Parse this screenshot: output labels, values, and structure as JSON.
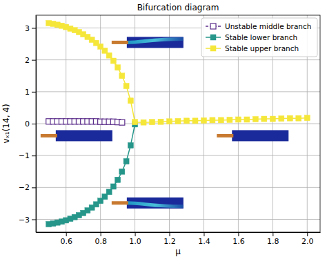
{
  "chart_data": {
    "type": "scatter",
    "title": "Bifurcation diagram",
    "x_label": "μ",
    "y_label": "vₓ₁(14, 4)",
    "xlim": [
      0.425,
      2.075
    ],
    "ylim": [
      -3.4,
      3.4
    ],
    "xticks": [
      0.6,
      0.8,
      {
        "value": 1.0,
        "label": "1.0"
      },
      1.2,
      1.4,
      1.6,
      1.8,
      {
        "value": 2.0,
        "label": "2.0"
      }
    ],
    "yticks": [
      {
        "value": -3,
        "label": "−3"
      },
      {
        "value": -2,
        "label": "−2"
      },
      {
        "value": -1,
        "label": "−1"
      },
      0,
      1,
      2,
      3
    ],
    "grid": true,
    "legend": "upper right",
    "series": [
      {
        "name": "Unstable middle branch",
        "color": "#5b2d8a",
        "marker": "open-square",
        "line_style": "dashed",
        "x": [
          0.5,
          0.525,
          0.55,
          0.575,
          0.6,
          0.625,
          0.65,
          0.675,
          0.7,
          0.725,
          0.75,
          0.775,
          0.8,
          0.825,
          0.85,
          0.875,
          0.9,
          0.925
        ],
        "values": [
          0.07,
          0.07,
          0.07,
          0.07,
          0.07,
          0.07,
          0.07,
          0.07,
          0.07,
          0.07,
          0.07,
          0.07,
          0.06,
          0.06,
          0.06,
          0.06,
          0.05,
          0.04
        ]
      },
      {
        "name": "Stable lower branch",
        "color": "#26968a",
        "marker": "square",
        "line_style": "solid",
        "x": [
          0.5,
          0.525,
          0.55,
          0.575,
          0.6,
          0.625,
          0.65,
          0.675,
          0.7,
          0.725,
          0.75,
          0.775,
          0.8,
          0.825,
          0.85,
          0.875,
          0.9,
          0.925,
          0.95,
          0.975,
          1.0
        ],
        "values": [
          -3.15,
          -3.13,
          -3.1,
          -3.07,
          -3.03,
          -2.98,
          -2.93,
          -2.87,
          -2.8,
          -2.72,
          -2.63,
          -2.53,
          -2.42,
          -2.29,
          -2.14,
          -1.97,
          -1.76,
          -1.5,
          -1.18,
          -0.68,
          -0.02
        ]
      },
      {
        "name": "Stable upper branch",
        "color": "#f5e63a",
        "marker": "square",
        "line_style": "solid",
        "x": [
          0.5,
          0.525,
          0.55,
          0.575,
          0.6,
          0.625,
          0.65,
          0.675,
          0.7,
          0.725,
          0.75,
          0.775,
          0.8,
          0.825,
          0.85,
          0.875,
          0.9,
          0.925,
          0.95,
          0.975,
          1.0,
          1.05,
          1.1,
          1.15,
          1.2,
          1.25,
          1.3,
          1.35,
          1.4,
          1.45,
          1.5,
          1.55,
          1.6,
          1.65,
          1.7,
          1.75,
          1.8,
          1.85,
          1.9,
          1.95,
          2.0
        ],
        "values": [
          3.15,
          3.13,
          3.1,
          3.07,
          3.03,
          2.98,
          2.93,
          2.87,
          2.8,
          2.72,
          2.63,
          2.53,
          2.42,
          2.29,
          2.14,
          1.97,
          1.76,
          1.5,
          1.18,
          0.72,
          0.05,
          0.04,
          0.05,
          0.06,
          0.07,
          0.08,
          0.09,
          0.09,
          0.1,
          0.11,
          0.11,
          0.12,
          0.13,
          0.13,
          0.14,
          0.15,
          0.15,
          0.16,
          0.17,
          0.17,
          0.18
        ]
      }
    ]
  }
}
